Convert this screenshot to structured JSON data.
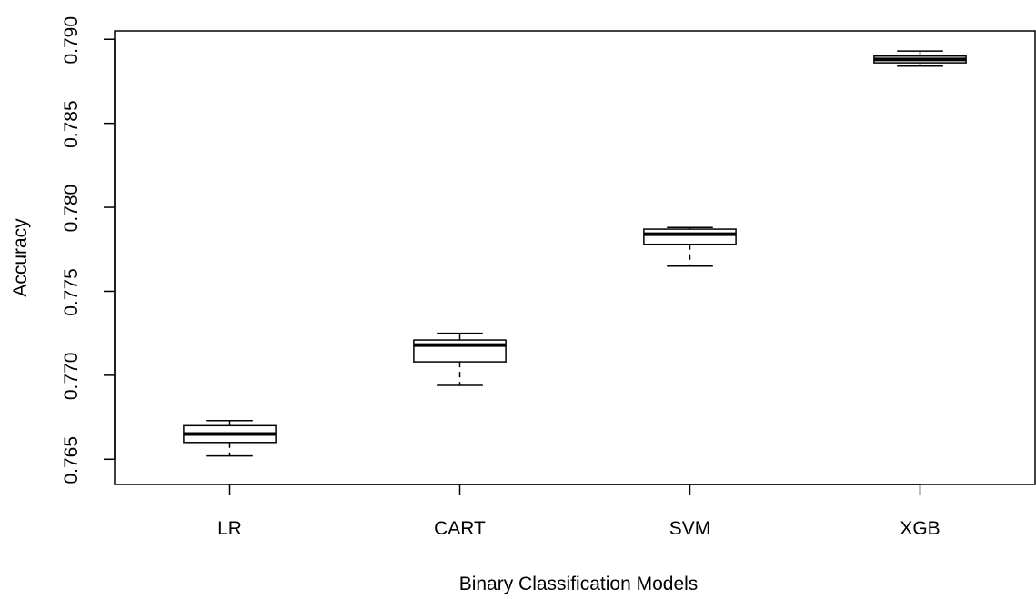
{
  "chart_data": {
    "type": "boxplot",
    "title": "",
    "xlabel": "Binary Classification Models",
    "ylabel": "Accuracy",
    "ylim": [
      0.7635,
      0.7905
    ],
    "yticks": [
      0.765,
      0.77,
      0.775,
      0.78,
      0.785,
      0.79
    ],
    "ytick_labels": [
      "0.765",
      "0.770",
      "0.775",
      "0.780",
      "0.785",
      "0.790"
    ],
    "grid": false,
    "legend": "none",
    "categories": [
      "LR",
      "CART",
      "SVM",
      "XGB"
    ],
    "boxes": [
      {
        "name": "LR",
        "min": 0.7652,
        "q1": 0.766,
        "median": 0.7665,
        "q3": 0.767,
        "max": 0.7673
      },
      {
        "name": "CART",
        "min": 0.7694,
        "q1": 0.7708,
        "median": 0.7718,
        "q3": 0.7721,
        "max": 0.7725
      },
      {
        "name": "SVM",
        "min": 0.7765,
        "q1": 0.7778,
        "median": 0.7784,
        "q3": 0.7787,
        "max": 0.7788
      },
      {
        "name": "XGB",
        "min": 0.7884,
        "q1": 0.7886,
        "median": 0.7888,
        "q3": 0.789,
        "max": 0.7893
      }
    ],
    "colors": {
      "stroke": "#000000",
      "box_fill": "#ffffff",
      "background": "#ffffff"
    }
  }
}
